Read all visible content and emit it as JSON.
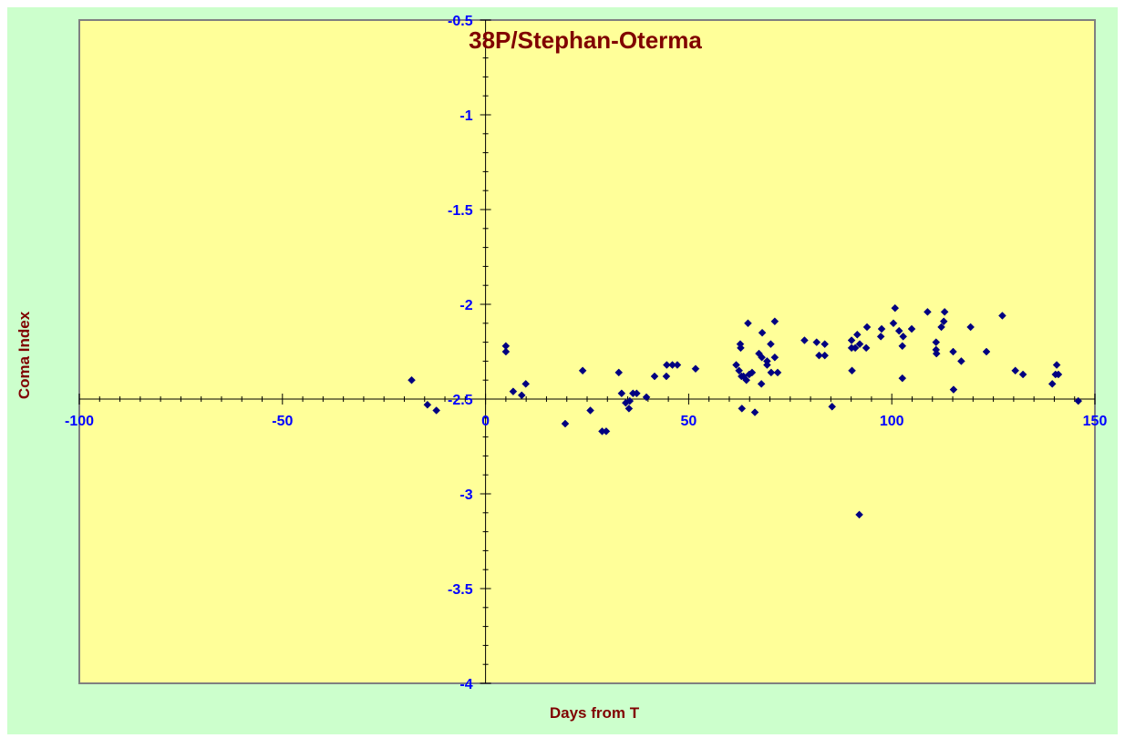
{
  "chart_data": {
    "type": "scatter",
    "title": "38P/Stephan-Oterma",
    "xlabel": "Days from T",
    "ylabel": "Coma Index",
    "xlim": [
      -100,
      150
    ],
    "ylim": [
      -4,
      -0.5
    ],
    "x_ticks": [
      -100,
      -50,
      0,
      50,
      100,
      150
    ],
    "y_ticks": [
      -4,
      -3.5,
      -3,
      -2.5,
      -2,
      -1.5,
      -1,
      -0.5
    ],
    "x_tick_labels": [
      "-100",
      "-50",
      "0",
      "50",
      "100",
      "150"
    ],
    "y_tick_labels": [
      "-4",
      "-3.5",
      "-3",
      "-2.5",
      "-2",
      "-1.5",
      "-1",
      "-0.5"
    ],
    "grid": false,
    "legend": "none",
    "colors": {
      "background": "#ccffcc",
      "plot_area": "#ffff99",
      "marker": "#000080",
      "title": "#800000",
      "tick_labels": "#0000ff",
      "axis_titles": "#800000"
    },
    "series": [
      {
        "marker": "diamond",
        "points": [
          [
            -18.2,
            -2.4
          ],
          [
            -14.3,
            -2.53
          ],
          [
            -12.1,
            -2.56
          ],
          [
            5.0,
            -2.22
          ],
          [
            5.0,
            -2.25
          ],
          [
            6.8,
            -2.46
          ],
          [
            8.9,
            -2.48
          ],
          [
            9.9,
            -2.42
          ],
          [
            19.6,
            -2.63
          ],
          [
            23.9,
            -2.35
          ],
          [
            25.8,
            -2.56
          ],
          [
            28.7,
            -2.67
          ],
          [
            29.7,
            -2.67
          ],
          [
            32.8,
            -2.36
          ],
          [
            33.5,
            -2.47
          ],
          [
            34.5,
            -2.52
          ],
          [
            35.3,
            -2.55
          ],
          [
            35.5,
            -2.51
          ],
          [
            36.3,
            -2.47
          ],
          [
            37.2,
            -2.47
          ],
          [
            39.6,
            -2.49
          ],
          [
            41.6,
            -2.38
          ],
          [
            44.5,
            -2.38
          ],
          [
            44.6,
            -2.32
          ],
          [
            46.0,
            -2.32
          ],
          [
            47.2,
            -2.32
          ],
          [
            51.7,
            -2.34
          ],
          [
            61.7,
            -2.32
          ],
          [
            62.4,
            -2.35
          ],
          [
            62.7,
            -2.21
          ],
          [
            62.8,
            -2.23
          ],
          [
            63.0,
            -2.38
          ],
          [
            63.1,
            -2.55
          ],
          [
            63.5,
            -2.38
          ],
          [
            64.2,
            -2.4
          ],
          [
            64.9,
            -2.37
          ],
          [
            64.6,
            -2.1
          ],
          [
            65.6,
            -2.36
          ],
          [
            66.3,
            -2.57
          ],
          [
            67.3,
            -2.26
          ],
          [
            67.9,
            -2.42
          ],
          [
            68.0,
            -2.28
          ],
          [
            68.1,
            -2.15
          ],
          [
            69.3,
            -2.3
          ],
          [
            69.3,
            -2.32
          ],
          [
            70.2,
            -2.21
          ],
          [
            70.3,
            -2.36
          ],
          [
            71.2,
            -2.09
          ],
          [
            71.2,
            -2.28
          ],
          [
            71.9,
            -2.36
          ],
          [
            78.5,
            -2.19
          ],
          [
            81.5,
            -2.2
          ],
          [
            82.1,
            -2.27
          ],
          [
            83.5,
            -2.21
          ],
          [
            83.5,
            -2.27
          ],
          [
            85.3,
            -2.54
          ],
          [
            90.1,
            -2.19
          ],
          [
            90.1,
            -2.23
          ],
          [
            90.2,
            -2.35
          ],
          [
            91.0,
            -2.23
          ],
          [
            91.5,
            -2.16
          ],
          [
            92.0,
            -3.11
          ],
          [
            92.1,
            -2.21
          ],
          [
            93.7,
            -2.23
          ],
          [
            93.9,
            -2.12
          ],
          [
            97.3,
            -2.17
          ],
          [
            97.5,
            -2.13
          ],
          [
            100.4,
            -2.1
          ],
          [
            100.8,
            -2.02
          ],
          [
            101.8,
            -2.14
          ],
          [
            102.6,
            -2.22
          ],
          [
            102.6,
            -2.39
          ],
          [
            102.8,
            -2.17
          ],
          [
            104.9,
            -2.13
          ],
          [
            108.8,
            -2.04
          ],
          [
            110.9,
            -2.2
          ],
          [
            110.9,
            -2.24
          ],
          [
            111.0,
            -2.26
          ],
          [
            112.2,
            -2.12
          ],
          [
            112.8,
            -2.09
          ],
          [
            113.0,
            -2.04
          ],
          [
            115.1,
            -2.25
          ],
          [
            115.2,
            -2.45
          ],
          [
            117.1,
            -2.3
          ],
          [
            119.4,
            -2.12
          ],
          [
            123.3,
            -2.25
          ],
          [
            127.2,
            -2.06
          ],
          [
            130.4,
            -2.35
          ],
          [
            132.3,
            -2.37
          ],
          [
            139.5,
            -2.42
          ],
          [
            140.3,
            -2.37
          ],
          [
            140.6,
            -2.32
          ],
          [
            141.0,
            -2.37
          ],
          [
            145.9,
            -2.51
          ]
        ]
      }
    ]
  }
}
